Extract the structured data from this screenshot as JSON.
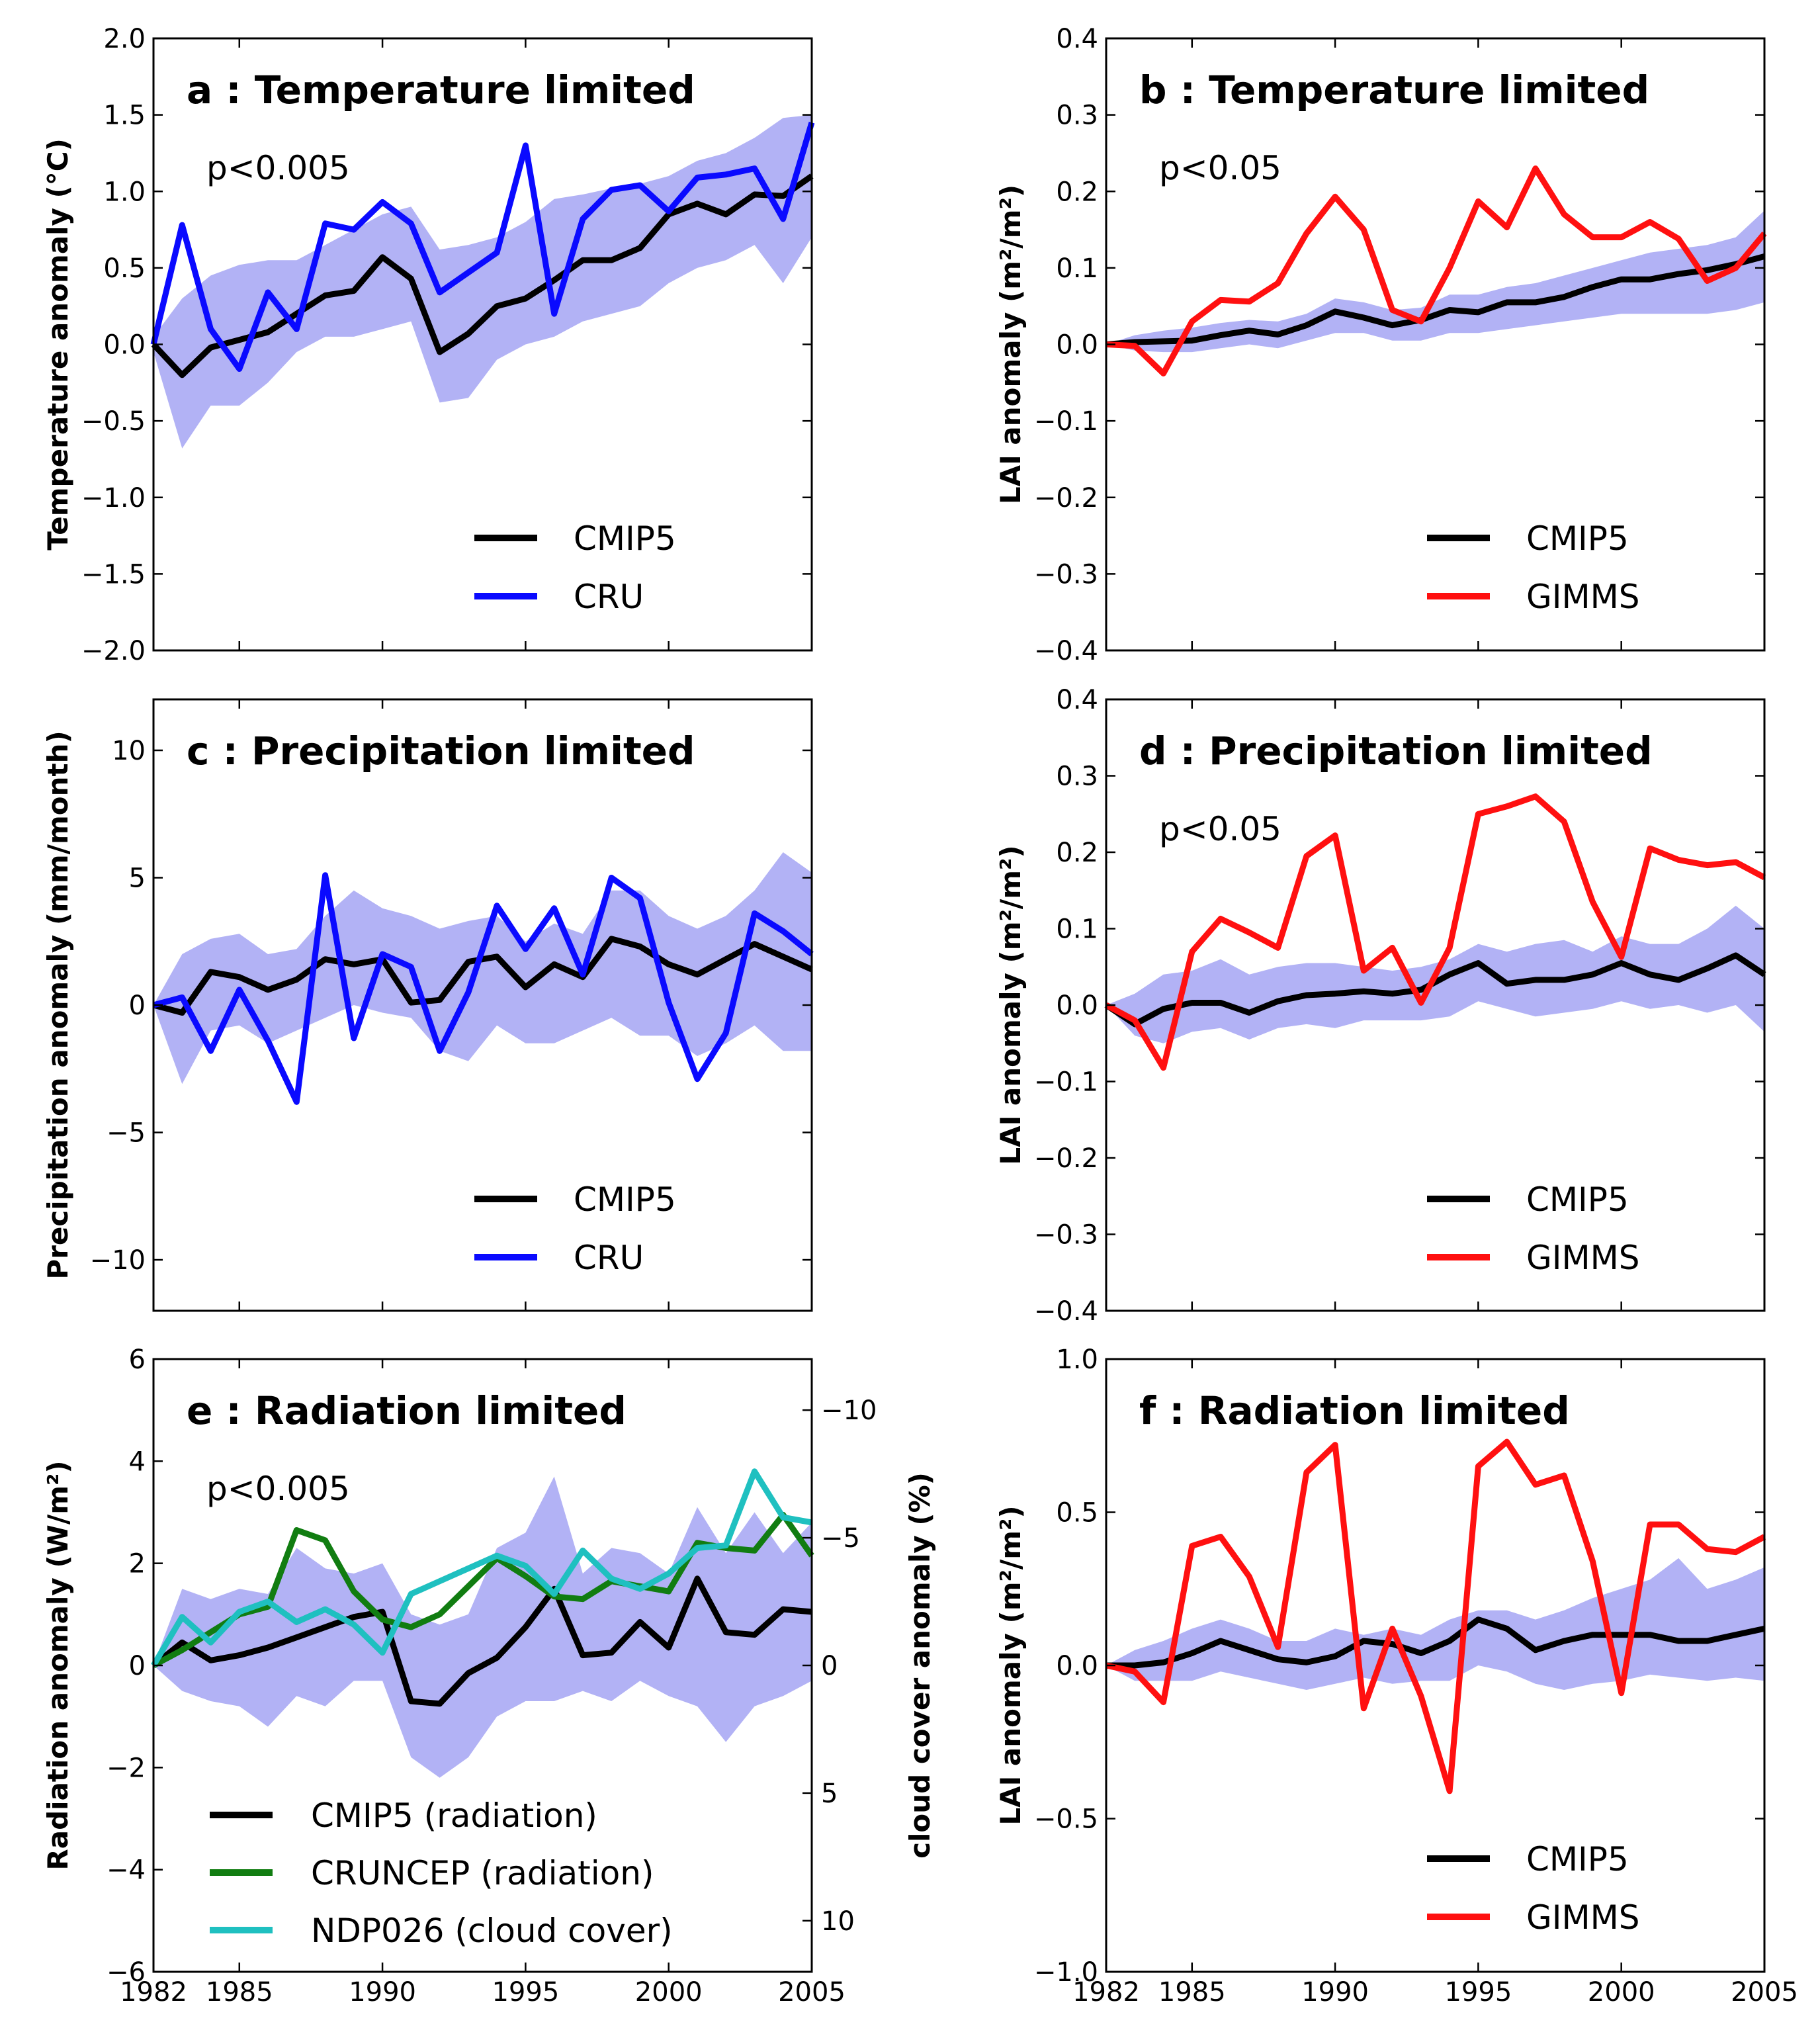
{
  "colors": {
    "cmip5": "#000000",
    "cru": "#0a0aff",
    "gimms": "#ff1010",
    "cruncep": "#117d11",
    "ndp026": "#1fc0c0",
    "band": "#b2b2f5"
  },
  "chart_data": [
    {
      "id": "a",
      "type": "line",
      "title": "a : Temperature limited",
      "annotation": "p<0.005",
      "ylabel": "Temperature anomaly (°C)",
      "xlabel": "",
      "ylim": [
        -2.0,
        2.0
      ],
      "yticks": [
        "−2.0",
        "−1.5",
        "−1.0",
        "−0.5",
        "0.0",
        "0.5",
        "1.0",
        "1.5",
        "2.0"
      ],
      "xticks": [
        "1982",
        "1985",
        "1990",
        "1995",
        "2000",
        "2005"
      ],
      "x": [
        1982,
        1983,
        1984,
        1985,
        1986,
        1987,
        1988,
        1989,
        1990,
        1991,
        1992,
        1993,
        1994,
        1995,
        1996,
        1997,
        1998,
        1999,
        2000,
        2001,
        2002,
        2003,
        2004,
        2005
      ],
      "band": {
        "upper": [
          0.05,
          0.3,
          0.45,
          0.52,
          0.55,
          0.55,
          0.65,
          0.75,
          0.85,
          0.9,
          0.62,
          0.65,
          0.7,
          0.8,
          0.95,
          0.98,
          1.02,
          1.05,
          1.1,
          1.2,
          1.25,
          1.35,
          1.48,
          1.5
        ],
        "lower": [
          -0.05,
          -0.68,
          -0.4,
          -0.4,
          -0.25,
          -0.05,
          0.05,
          0.05,
          0.1,
          0.15,
          -0.38,
          -0.35,
          -0.1,
          0.0,
          0.05,
          0.15,
          0.2,
          0.25,
          0.4,
          0.5,
          0.55,
          0.65,
          0.4,
          0.7
        ]
      },
      "series": [
        {
          "name": "CMIP5",
          "color_key": "cmip5",
          "values": [
            0.0,
            -0.2,
            -0.02,
            0.03,
            0.08,
            0.2,
            0.32,
            0.35,
            0.57,
            0.43,
            -0.05,
            0.07,
            0.25,
            0.3,
            0.42,
            0.55,
            0.55,
            0.63,
            0.85,
            0.92,
            0.85,
            0.98,
            0.97,
            1.1
          ]
        },
        {
          "name": "CRU",
          "color_key": "cru",
          "values": [
            0.0,
            0.78,
            0.1,
            -0.16,
            0.34,
            0.1,
            0.79,
            0.75,
            0.93,
            0.79,
            0.34,
            0.47,
            0.6,
            1.3,
            0.2,
            0.82,
            1.01,
            1.04,
            0.87,
            1.09,
            1.11,
            1.15,
            0.82,
            1.45
          ]
        }
      ],
      "legend": [
        {
          "label": "CMIP5",
          "color_key": "cmip5"
        },
        {
          "label": "CRU",
          "color_key": "cru"
        }
      ]
    },
    {
      "id": "b",
      "type": "line",
      "title": "b : Temperature limited",
      "annotation": "p<0.05",
      "ylabel": "LAI anomaly (m²/m²)",
      "xlabel": "",
      "ylim": [
        -0.4,
        0.4
      ],
      "yticks": [
        "−0.4",
        "−0.3",
        "−0.2",
        "−0.1",
        "0.0",
        "0.1",
        "0.2",
        "0.3",
        "0.4"
      ],
      "xticks": [
        "1982",
        "1985",
        "1990",
        "1995",
        "2000",
        "2005"
      ],
      "x": [
        1982,
        1983,
        1984,
        1985,
        1986,
        1987,
        1988,
        1989,
        1990,
        1991,
        1992,
        1993,
        1994,
        1995,
        1996,
        1997,
        1998,
        1999,
        2000,
        2001,
        2002,
        2003,
        2004,
        2005
      ],
      "band": {
        "upper": [
          0.0,
          0.012,
          0.018,
          0.022,
          0.028,
          0.032,
          0.03,
          0.04,
          0.06,
          0.055,
          0.045,
          0.048,
          0.065,
          0.065,
          0.075,
          0.08,
          0.09,
          0.1,
          0.11,
          0.12,
          0.125,
          0.13,
          0.14,
          0.175
        ],
        "lower": [
          0.0,
          -0.008,
          -0.01,
          -0.01,
          -0.005,
          0.0,
          -0.005,
          0.005,
          0.015,
          0.015,
          0.005,
          0.005,
          0.015,
          0.015,
          0.02,
          0.025,
          0.03,
          0.035,
          0.04,
          0.04,
          0.04,
          0.04,
          0.045,
          0.055
        ]
      },
      "series": [
        {
          "name": "CMIP5",
          "color_key": "cmip5",
          "values": [
            0.0,
            0.003,
            0.004,
            0.005,
            0.012,
            0.018,
            0.013,
            0.025,
            0.043,
            0.035,
            0.025,
            0.032,
            0.045,
            0.042,
            0.055,
            0.055,
            0.062,
            0.075,
            0.085,
            0.085,
            0.092,
            0.097,
            0.105,
            0.115
          ]
        },
        {
          "name": "GIMMS",
          "color_key": "gimms",
          "values": [
            0.0,
            -0.002,
            -0.038,
            0.03,
            0.058,
            0.056,
            0.08,
            0.145,
            0.193,
            0.15,
            0.045,
            0.03,
            0.1,
            0.187,
            0.153,
            0.23,
            0.17,
            0.14,
            0.14,
            0.16,
            0.138,
            0.083,
            0.1,
            0.145
          ]
        }
      ],
      "legend": [
        {
          "label": "CMIP5",
          "color_key": "cmip5"
        },
        {
          "label": "GIMMS",
          "color_key": "gimms"
        }
      ]
    },
    {
      "id": "c",
      "type": "line",
      "title": "c : Precipitation limited",
      "annotation": "",
      "ylabel": "Precipitation anomaly (mm/month)",
      "xlabel": "",
      "ylim": [
        -12,
        12
      ],
      "yticks": [
        "−10",
        "−5",
        "0",
        "5",
        "10"
      ],
      "ytick_values": [
        -10,
        -5,
        0,
        5,
        10
      ],
      "xticks": [
        "1982",
        "1985",
        "1990",
        "1995",
        "2000",
        "2005"
      ],
      "x": [
        1982,
        1983,
        1984,
        1985,
        1986,
        1987,
        1988,
        1989,
        1990,
        1991,
        1992,
        1993,
        1994,
        1995,
        1996,
        1997,
        1998,
        1999,
        2000,
        2001,
        2002,
        2003,
        2004,
        2005
      ],
      "band": {
        "upper": [
          0.0,
          2.0,
          2.6,
          2.8,
          2.0,
          2.2,
          3.5,
          4.5,
          3.8,
          3.5,
          3.0,
          3.3,
          3.5,
          2.5,
          3.2,
          2.8,
          4.5,
          4.5,
          3.5,
          3.0,
          3.5,
          4.5,
          6.0,
          5.2
        ],
        "lower": [
          0.0,
          -3.1,
          -1.0,
          -0.8,
          -1.5,
          -1.0,
          -0.5,
          0.0,
          -0.3,
          -0.5,
          -1.8,
          -2.2,
          -0.8,
          -1.5,
          -1.5,
          -1.0,
          -0.5,
          -1.2,
          -1.2,
          -2.0,
          -1.5,
          -0.8,
          -1.8,
          -1.8
        ]
      },
      "series": [
        {
          "name": "CMIP5",
          "color_key": "cmip5",
          "values": [
            0.0,
            -0.3,
            1.3,
            1.1,
            0.6,
            1.0,
            1.8,
            1.6,
            1.8,
            0.1,
            0.2,
            1.7,
            1.9,
            0.7,
            1.6,
            1.1,
            2.6,
            2.3,
            1.6,
            1.2,
            1.8,
            2.4,
            1.9,
            1.4
          ]
        },
        {
          "name": "CRU",
          "color_key": "cru",
          "values": [
            0.0,
            0.3,
            -1.8,
            0.6,
            -1.4,
            -3.8,
            5.1,
            -1.3,
            2.0,
            1.5,
            -1.8,
            0.5,
            3.9,
            2.2,
            3.8,
            1.2,
            5.0,
            4.2,
            0.1,
            -2.9,
            -1.1,
            3.6,
            2.9,
            2.0
          ]
        }
      ],
      "legend": [
        {
          "label": "CMIP5",
          "color_key": "cmip5"
        },
        {
          "label": "CRU",
          "color_key": "cru"
        }
      ]
    },
    {
      "id": "d",
      "type": "line",
      "title": "d : Precipitation limited",
      "annotation": "p<0.05",
      "ylabel": "LAI anomaly (m²/m²)",
      "xlabel": "",
      "ylim": [
        -0.4,
        0.4
      ],
      "yticks": [
        "−0.4",
        "−0.3",
        "−0.2",
        "−0.1",
        "0.0",
        "0.1",
        "0.2",
        "0.3",
        "0.4"
      ],
      "xticks": [
        "1982",
        "1985",
        "1990",
        "1995",
        "2000",
        "2005"
      ],
      "x": [
        1982,
        1983,
        1984,
        1985,
        1986,
        1987,
        1988,
        1989,
        1990,
        1991,
        1992,
        1993,
        1994,
        1995,
        1996,
        1997,
        1998,
        1999,
        2000,
        2001,
        2002,
        2003,
        2004,
        2005
      ],
      "band": {
        "upper": [
          0.0,
          0.015,
          0.04,
          0.045,
          0.06,
          0.04,
          0.05,
          0.055,
          0.055,
          0.05,
          0.045,
          0.05,
          0.06,
          0.08,
          0.07,
          0.08,
          0.085,
          0.07,
          0.09,
          0.08,
          0.08,
          0.1,
          0.13,
          0.1
        ],
        "lower": [
          0.0,
          -0.04,
          -0.05,
          -0.035,
          -0.03,
          -0.045,
          -0.03,
          -0.025,
          -0.03,
          -0.02,
          -0.02,
          -0.02,
          -0.015,
          0.005,
          -0.005,
          -0.015,
          -0.01,
          -0.005,
          0.005,
          -0.005,
          0.0,
          -0.01,
          0.0,
          -0.035
        ]
      },
      "series": [
        {
          "name": "CMIP5",
          "color_key": "cmip5",
          "values": [
            0.0,
            -0.025,
            -0.005,
            0.003,
            0.003,
            -0.01,
            0.005,
            0.013,
            0.015,
            0.018,
            0.015,
            0.02,
            0.04,
            0.055,
            0.028,
            0.033,
            0.033,
            0.04,
            0.055,
            0.04,
            0.033,
            0.048,
            0.065,
            0.04
          ]
        },
        {
          "name": "GIMMS",
          "color_key": "gimms",
          "values": [
            0.0,
            -0.02,
            -0.082,
            0.07,
            0.113,
            0.095,
            0.075,
            0.195,
            0.222,
            0.045,
            0.075,
            0.003,
            0.075,
            0.25,
            0.26,
            0.273,
            0.24,
            0.135,
            0.063,
            0.205,
            0.19,
            0.183,
            0.187,
            0.167
          ]
        }
      ],
      "legend": [
        {
          "label": "CMIP5",
          "color_key": "cmip5"
        },
        {
          "label": "GIMMS",
          "color_key": "gimms"
        }
      ]
    },
    {
      "id": "e",
      "type": "line",
      "title": "e : Radiation limited",
      "annotation": "p<0.005",
      "ylabel": "Radiation anomaly (W/m²)",
      "y2label": "cloud cover anomaly (%)",
      "xlabel": "",
      "ylim": [
        -6,
        6
      ],
      "yticks": [
        "−6",
        "−4",
        "−2",
        "0",
        "2",
        "4",
        "6"
      ],
      "ytick_values": [
        -6,
        -4,
        -2,
        0,
        2,
        4,
        6
      ],
      "y2lim": [
        12,
        -12
      ],
      "y2ticks": [
        "−10",
        "−5",
        "0",
        "5",
        "10"
      ],
      "y2tick_values": [
        -10,
        -5,
        0,
        5,
        10
      ],
      "xticks": [
        "1982",
        "1985",
        "1990",
        "1995",
        "2000",
        "2005"
      ],
      "x": [
        1982,
        1983,
        1984,
        1985,
        1986,
        1987,
        1988,
        1989,
        1990,
        1991,
        1992,
        1993,
        1994,
        1995,
        1996,
        1997,
        1998,
        1999,
        2000,
        2001,
        2002,
        2003,
        2004,
        2005
      ],
      "band": {
        "upper": [
          0.0,
          1.5,
          1.3,
          1.5,
          1.4,
          2.3,
          1.9,
          1.8,
          2.0,
          1.0,
          0.8,
          1.0,
          2.3,
          2.6,
          3.7,
          1.8,
          2.3,
          2.2,
          1.8,
          3.1,
          2.2,
          3.0,
          2.2,
          2.8
        ],
        "lower": [
          0.0,
          -0.5,
          -0.7,
          -0.8,
          -1.2,
          -0.6,
          -0.8,
          -0.3,
          -0.3,
          -1.8,
          -2.2,
          -1.8,
          -1.0,
          -0.7,
          -0.7,
          -0.5,
          -0.7,
          -0.3,
          -0.6,
          -0.8,
          -1.5,
          -0.8,
          -0.6,
          -0.3
        ]
      },
      "series": [
        {
          "name": "CMIP5 (radiation)",
          "color_key": "cmip5",
          "axis": "left",
          "values": [
            0.0,
            0.45,
            0.1,
            0.2,
            0.35,
            0.55,
            0.75,
            0.95,
            1.05,
            -0.7,
            -0.75,
            -0.15,
            0.15,
            0.75,
            1.5,
            0.2,
            0.25,
            0.85,
            0.35,
            1.7,
            0.65,
            0.6,
            1.1,
            1.05
          ]
        },
        {
          "name": "CRUNCEP (radiation)",
          "color_key": "cruncep",
          "axis": "left",
          "values": [
            0.0,
            0.3,
            0.65,
            1.0,
            1.15,
            2.65,
            2.45,
            1.45,
            0.9,
            0.75,
            1.0,
            1.55,
            2.1,
            1.75,
            1.35,
            1.3,
            1.65,
            1.55,
            1.45,
            2.4,
            2.3,
            2.25,
            2.95,
            2.15
          ]
        },
        {
          "name": "NDP026 (cloud cover)",
          "color_key": "ndp026",
          "axis": "right",
          "values": [
            0.0,
            -1.9,
            -0.9,
            -2.1,
            -2.5,
            -1.7,
            -2.2,
            -1.6,
            -0.5,
            -2.8,
            -3.3,
            -3.8,
            -4.3,
            -3.9,
            -2.8,
            -4.5,
            -3.4,
            -3.0,
            -3.6,
            -4.6,
            -4.7,
            -7.6,
            -5.8,
            -5.6
          ]
        }
      ],
      "legend": [
        {
          "label": "CMIP5 (radiation)",
          "color_key": "cmip5"
        },
        {
          "label": "CRUNCEP (radiation)",
          "color_key": "cruncep"
        },
        {
          "label": "NDP026 (cloud cover)",
          "color_key": "ndp026"
        }
      ]
    },
    {
      "id": "f",
      "type": "line",
      "title": "f : Radiation limited",
      "annotation": "",
      "ylabel": "LAI anomaly (m²/m²)",
      "xlabel": "",
      "ylim": [
        -1.0,
        1.0
      ],
      "yticks": [
        "−1.0",
        "−0.5",
        "0.0",
        "0.5",
        "1.0"
      ],
      "ytick_values": [
        -1.0,
        -0.5,
        0.0,
        0.5,
        1.0
      ],
      "xticks": [
        "1982",
        "1985",
        "1990",
        "1995",
        "2000",
        "2005"
      ],
      "x": [
        1982,
        1983,
        1984,
        1985,
        1986,
        1987,
        1988,
        1989,
        1990,
        1991,
        1992,
        1993,
        1994,
        1995,
        1996,
        1997,
        1998,
        1999,
        2000,
        2001,
        2002,
        2003,
        2004,
        2005
      ],
      "band": {
        "upper": [
          0.0,
          0.05,
          0.08,
          0.12,
          0.15,
          0.12,
          0.08,
          0.08,
          0.12,
          0.1,
          0.12,
          0.1,
          0.15,
          0.18,
          0.18,
          0.15,
          0.18,
          0.22,
          0.25,
          0.28,
          0.35,
          0.25,
          0.28,
          0.32
        ],
        "lower": [
          0.0,
          -0.05,
          -0.05,
          -0.05,
          -0.02,
          -0.04,
          -0.06,
          -0.08,
          -0.06,
          -0.04,
          -0.06,
          -0.05,
          -0.05,
          0.0,
          -0.02,
          -0.06,
          -0.08,
          -0.06,
          -0.05,
          -0.03,
          -0.04,
          -0.05,
          -0.04,
          -0.05
        ]
      },
      "series": [
        {
          "name": "CMIP5",
          "color_key": "cmip5",
          "values": [
            0.0,
            0.0,
            0.01,
            0.04,
            0.08,
            0.05,
            0.02,
            0.01,
            0.03,
            0.08,
            0.07,
            0.04,
            0.08,
            0.15,
            0.12,
            0.05,
            0.08,
            0.1,
            0.1,
            0.1,
            0.08,
            0.08,
            0.1,
            0.12
          ]
        },
        {
          "name": "GIMMS",
          "color_key": "gimms",
          "values": [
            0.0,
            -0.02,
            -0.12,
            0.39,
            0.42,
            0.29,
            0.06,
            0.63,
            0.72,
            -0.14,
            0.12,
            -0.1,
            -0.41,
            0.65,
            0.73,
            0.59,
            0.62,
            0.34,
            -0.09,
            0.46,
            0.46,
            0.38,
            0.37,
            0.42
          ]
        }
      ],
      "legend": [
        {
          "label": "CMIP5",
          "color_key": "cmip5"
        },
        {
          "label": "GIMMS",
          "color_key": "gimms"
        }
      ]
    }
  ]
}
